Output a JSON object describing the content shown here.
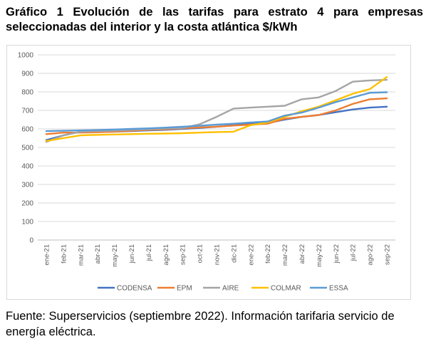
{
  "title": "Gráfico 1 Evolución de las tarifas para estrato 4 para empresas seleccionadas del interior y la costa atlántica $/kWh",
  "source": "Fuente: Superservicios (septiembre 2022). Información tarifaria servicio de energía eléctrica.",
  "chart_data": {
    "type": "line",
    "title": "",
    "xlabel": "",
    "ylabel": "",
    "ylim": [
      0,
      1000
    ],
    "yticks": [
      0,
      100,
      200,
      300,
      400,
      500,
      600,
      700,
      800,
      900,
      1000
    ],
    "grid": true,
    "legend_position": "bottom",
    "categories": [
      "ene-21",
      "feb-21",
      "mar-21",
      "abr-21",
      "may-21",
      "jun-21",
      "jul-21",
      "ago-21",
      "sep-21",
      "oct-21",
      "nov-21",
      "dic-21",
      "ene-22",
      "feb-22",
      "mar-22",
      "abr-22",
      "may-22",
      "jun-22",
      "jul-22",
      "ago-22",
      "sep-22"
    ],
    "series": [
      {
        "name": "CODENSA",
        "color": "#4472C4",
        "values": [
          540,
          565,
          585,
          585,
          585,
          588,
          592,
          595,
          600,
          605,
          612,
          620,
          628,
          632,
          650,
          665,
          675,
          690,
          705,
          715,
          720
        ]
      },
      {
        "name": "EPM",
        "color": "#ED7D31",
        "values": [
          572,
          580,
          580,
          582,
          585,
          590,
          595,
          598,
          603,
          608,
          612,
          618,
          623,
          628,
          655,
          665,
          675,
          700,
          735,
          760,
          765
        ]
      },
      {
        "name": "AIRE",
        "color": "#A5A5A5",
        "values": [
          530,
          565,
          585,
          588,
          590,
          595,
          598,
          602,
          605,
          625,
          665,
          710,
          715,
          720,
          725,
          760,
          770,
          805,
          855,
          862,
          865
        ]
      },
      {
        "name": "COLMAR",
        "color": "#FFC000",
        "values": [
          535,
          550,
          565,
          568,
          570,
          572,
          574,
          575,
          577,
          580,
          583,
          585,
          620,
          635,
          665,
          695,
          720,
          755,
          790,
          815,
          880
        ]
      },
      {
        "name": "ESSA",
        "color": "#5B9BD5",
        "values": [
          588,
          590,
          592,
          594,
          597,
          600,
          603,
          607,
          612,
          617,
          623,
          628,
          635,
          640,
          672,
          688,
          715,
          745,
          770,
          795,
          798
        ]
      }
    ]
  }
}
